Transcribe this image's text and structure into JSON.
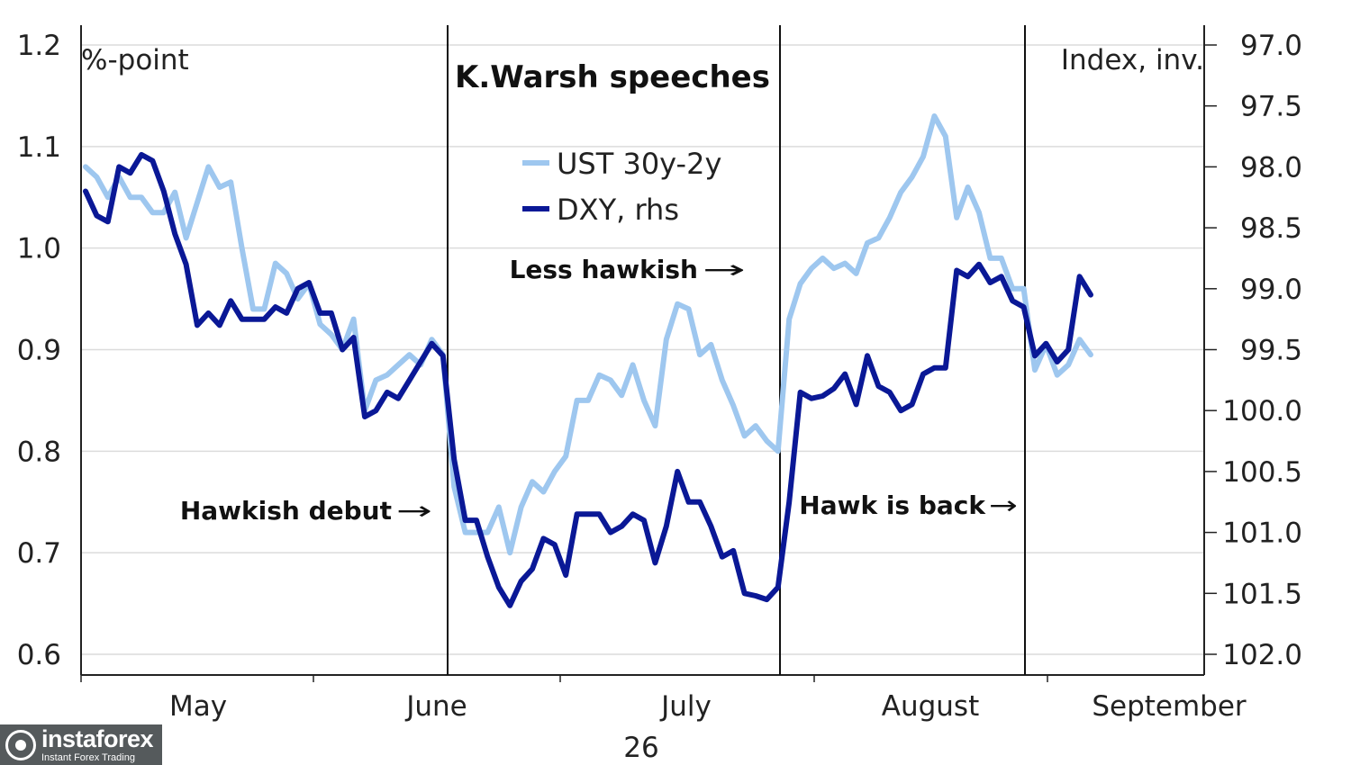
{
  "chart_data": {
    "type": "line",
    "title": "K.Warsh speeches",
    "left_axis": {
      "unit_label": "%-point",
      "min": 0.6,
      "max": 1.2,
      "ticks": [
        "0.6",
        "0.7",
        "0.8",
        "0.9",
        "1.0",
        "1.1",
        "1.2"
      ]
    },
    "right_axis": {
      "unit_label": "Index, inv.",
      "inverted": true,
      "min": 97.0,
      "max": 102.0,
      "ticks": [
        "97.0",
        "97.5",
        "98.0",
        "98.5",
        "99.0",
        "99.5",
        "100.0",
        "100.5",
        "101.0",
        "101.5",
        "102.0"
      ]
    },
    "x_labels": [
      "May",
      "June",
      "July",
      "August",
      "September"
    ],
    "x_sub_label": "26",
    "event_markers": [
      6,
      39,
      81
    ],
    "legend": [
      {
        "name": "UST 30y-2y",
        "color": "#9ec7ef",
        "axis": "left"
      },
      {
        "name": "DXY, rhs",
        "color": "#0a1896",
        "axis": "right"
      }
    ],
    "annotations": [
      {
        "text": "Hawkish debut",
        "arrow": "→"
      },
      {
        "text": "Less hawkish",
        "arrow": "→"
      },
      {
        "text": "Hawk is back",
        "arrow": "→"
      }
    ],
    "series": [
      {
        "name": "UST 30y-2y",
        "values": [
          1.08,
          1.07,
          1.05,
          1.07,
          1.05,
          1.05,
          1.035,
          1.035,
          1.055,
          1.01,
          1.045,
          1.08,
          1.06,
          1.065,
          1.0,
          0.94,
          0.94,
          0.985,
          0.975,
          0.95,
          0.965,
          0.925,
          0.915,
          0.9,
          0.93,
          0.84,
          0.87,
          0.875,
          0.885,
          0.895,
          0.885,
          0.91,
          0.895,
          0.765,
          0.72,
          0.72,
          0.72,
          0.745,
          0.7,
          0.745,
          0.77,
          0.76,
          0.78,
          0.795,
          0.85,
          0.85,
          0.875,
          0.87,
          0.855,
          0.885,
          0.85,
          0.825,
          0.91,
          0.945,
          0.94,
          0.895,
          0.905,
          0.87,
          0.845,
          0.815,
          0.825,
          0.81,
          0.8,
          0.93,
          0.965,
          0.98,
          0.99,
          0.98,
          0.985,
          0.975,
          1.005,
          1.01,
          1.03,
          1.055,
          1.07,
          1.09,
          1.13,
          1.11,
          1.03,
          1.06,
          1.035,
          0.99,
          0.99,
          0.96,
          0.96,
          0.88,
          0.905,
          0.875,
          0.885,
          0.91,
          0.895
        ]
      },
      {
        "name": "DXY, rhs",
        "values": [
          98.2,
          98.4,
          98.45,
          98.0,
          98.05,
          97.9,
          97.95,
          98.2,
          98.55,
          98.8,
          99.3,
          99.2,
          99.3,
          99.1,
          99.25,
          99.25,
          99.25,
          99.15,
          99.2,
          99.0,
          98.95,
          99.2,
          99.2,
          99.5,
          99.4,
          100.05,
          100.0,
          99.85,
          99.9,
          99.75,
          99.6,
          99.45,
          99.55,
          100.4,
          100.9,
          100.9,
          101.2,
          101.45,
          101.6,
          101.4,
          101.3,
          101.05,
          101.1,
          101.35,
          100.85,
          100.85,
          100.85,
          101.0,
          100.95,
          100.85,
          100.9,
          101.25,
          100.95,
          100.5,
          100.75,
          100.75,
          100.95,
          101.2,
          101.15,
          101.5,
          101.52,
          101.55,
          101.45,
          100.75,
          99.85,
          99.9,
          99.88,
          99.82,
          99.7,
          99.95,
          99.55,
          99.8,
          99.85,
          100.0,
          99.95,
          99.7,
          99.65,
          99.65,
          98.85,
          98.9,
          98.8,
          98.95,
          98.9,
          99.1,
          99.15,
          99.55,
          99.45,
          99.6,
          99.5,
          98.9,
          99.05
        ]
      }
    ]
  },
  "brand": {
    "name": "instaforex",
    "tagline": "Instant Forex Trading"
  }
}
